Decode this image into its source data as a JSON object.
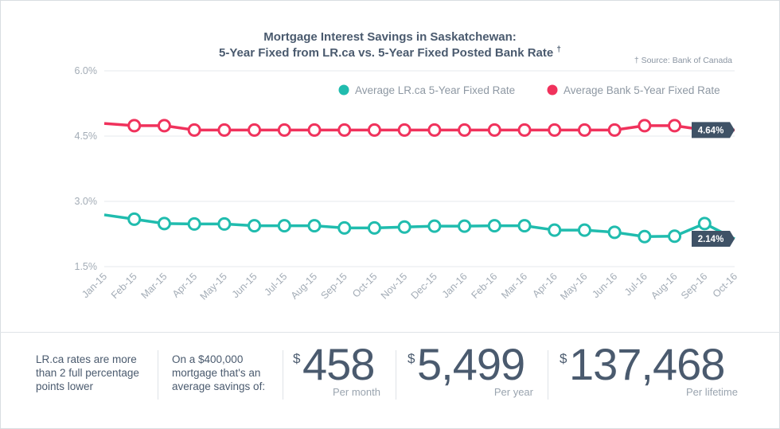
{
  "chart_data": {
    "type": "line",
    "title_line1": "Mortgage Interest Savings in Saskatchewan:",
    "title_line2": "5-Year Fixed from LR.ca vs. 5-Year Fixed Posted Bank Rate",
    "title_mark": "†",
    "source_note": "† Source: Bank of Canada",
    "categories": [
      "Jan-15",
      "Feb-15",
      "Mar-15",
      "Apr-15",
      "May-15",
      "Jun-15",
      "Jul-15",
      "Aug-15",
      "Sep-15",
      "Oct-15",
      "Nov-15",
      "Dec-15",
      "Jan-16",
      "Feb-16",
      "Mar-16",
      "Apr-16",
      "May-16",
      "Jun-16",
      "Jul-16",
      "Aug-16",
      "Sep-16",
      "Oct-16"
    ],
    "y_ticks": [
      "6.0%",
      "4.5%",
      "3.0%",
      "1.5%"
    ],
    "ylim": [
      1.5,
      6.0
    ],
    "legend_position": "top-right",
    "series": [
      {
        "name": "Average LR.ca 5-Year Fixed Rate",
        "color": "#20bcae",
        "values": [
          2.69,
          2.59,
          2.49,
          2.48,
          2.48,
          2.44,
          2.44,
          2.44,
          2.39,
          2.39,
          2.41,
          2.43,
          2.43,
          2.44,
          2.44,
          2.34,
          2.34,
          2.29,
          2.19,
          2.2,
          2.49,
          2.14
        ],
        "end_label": "2.14%"
      },
      {
        "name": "Average Bank 5-Year Fixed Rate",
        "color": "#f0325c",
        "values": [
          4.79,
          4.74,
          4.74,
          4.64,
          4.64,
          4.64,
          4.64,
          4.64,
          4.64,
          4.64,
          4.64,
          4.64,
          4.64,
          4.64,
          4.64,
          4.64,
          4.64,
          4.64,
          4.74,
          4.74,
          4.64,
          4.64
        ],
        "end_label": "4.64%"
      }
    ]
  },
  "footer": {
    "note1": "LR.ca rates are more than 2 full percentage points lower",
    "note2": "On a $400,000 mortgage that's an average savings of:",
    "currency": "$",
    "stats": [
      {
        "value": "458",
        "label": "Per month"
      },
      {
        "value": "5,499",
        "label": "Per year"
      },
      {
        "value": "137,468",
        "label": "Per lifetime"
      }
    ]
  }
}
